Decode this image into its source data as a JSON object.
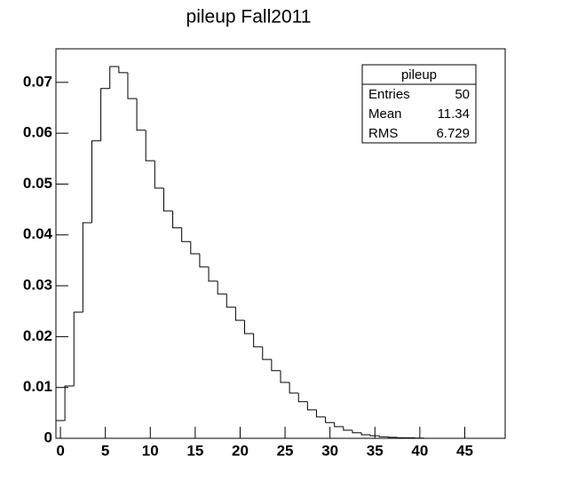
{
  "chart_data": {
    "type": "histogram",
    "title": "pileup Fall2011",
    "bins": [
      -0.5,
      0.5,
      1.5,
      2.5,
      3.5,
      4.5,
      5.5,
      6.5,
      7.5,
      8.5,
      9.5,
      10.5,
      11.5,
      12.5,
      13.5,
      14.5,
      15.5,
      16.5,
      17.5,
      18.5,
      19.5,
      20.5,
      21.5,
      22.5,
      23.5,
      24.5,
      25.5,
      26.5,
      27.5,
      28.5,
      29.5,
      30.5,
      31.5,
      32.5,
      33.5,
      34.5,
      35.5,
      36.5,
      37.5,
      38.5,
      39.5,
      40.5,
      41.5,
      42.5,
      43.5,
      44.5,
      45.5,
      46.5,
      47.5,
      48.5,
      49.5
    ],
    "values": [
      0.0035,
      0.0103,
      0.0248,
      0.0424,
      0.0585,
      0.0688,
      0.0731,
      0.0719,
      0.0668,
      0.0606,
      0.0546,
      0.0492,
      0.0447,
      0.0414,
      0.0387,
      0.0363,
      0.0337,
      0.0309,
      0.0284,
      0.0258,
      0.0232,
      0.0206,
      0.018,
      0.0155,
      0.0133,
      0.011,
      0.0089,
      0.0072,
      0.0056,
      0.0042,
      0.0031,
      0.0023,
      0.0016,
      0.0011,
      0.0007,
      0.0005,
      0.0003,
      0.0002,
      0.0001,
      0.0001,
      5e-05,
      0,
      0,
      0,
      0,
      0,
      0,
      0,
      0,
      0
    ],
    "color": "#000000",
    "xlim": [
      -0.5,
      49.5
    ],
    "xticks": [
      0,
      5,
      10,
      15,
      20,
      25,
      30,
      35,
      40,
      45
    ],
    "ylim": [
      0,
      0.0766
    ],
    "yticks": [
      0,
      0.01,
      0.02,
      0.03,
      0.04,
      0.05,
      0.06,
      0.07
    ],
    "stats": {
      "title": "pileup",
      "rows": [
        [
          "Entries",
          "50"
        ],
        [
          "Mean",
          "11.34"
        ],
        [
          "RMS",
          "6.729"
        ]
      ]
    }
  }
}
